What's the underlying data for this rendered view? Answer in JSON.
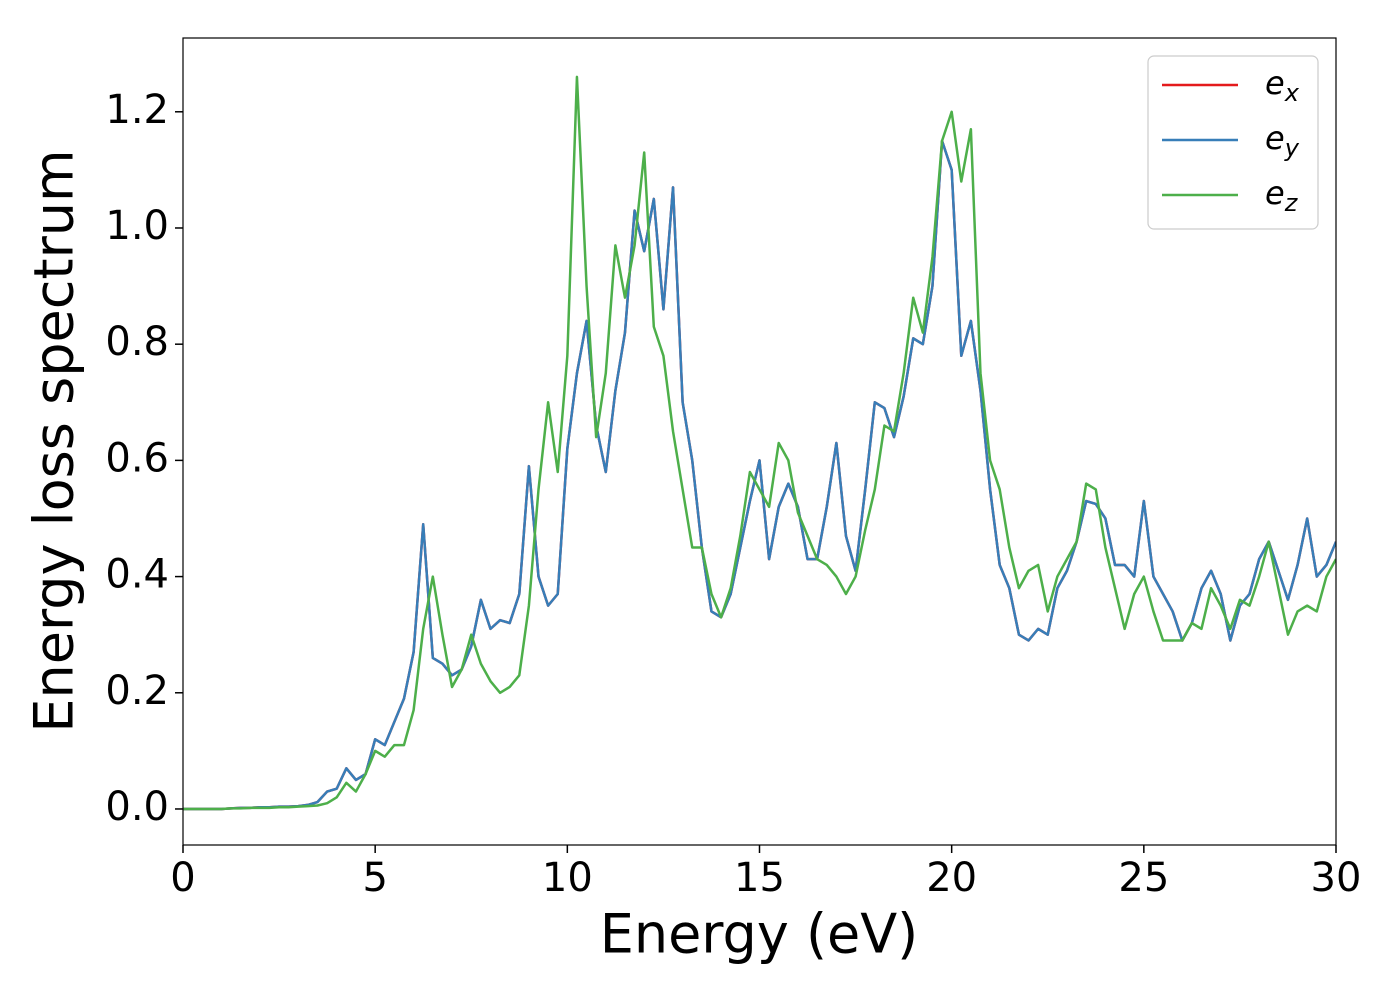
{
  "chart_data": {
    "type": "line",
    "xlabel": "Energy (eV)",
    "ylabel": "Energy loss spectrum",
    "x": [
      0,
      0.25,
      0.5,
      0.75,
      1,
      1.25,
      1.5,
      1.75,
      2,
      2.25,
      2.5,
      2.75,
      3,
      3.25,
      3.5,
      3.75,
      4,
      4.25,
      4.5,
      4.75,
      5,
      5.25,
      5.5,
      5.75,
      6,
      6.25,
      6.5,
      6.75,
      7,
      7.25,
      7.5,
      7.75,
      8,
      8.25,
      8.5,
      8.75,
      9,
      9.25,
      9.5,
      9.75,
      10,
      10.25,
      10.5,
      10.75,
      11,
      11.25,
      11.5,
      11.75,
      12,
      12.25,
      12.5,
      12.75,
      13,
      13.25,
      13.5,
      13.75,
      14,
      14.25,
      14.5,
      14.75,
      15,
      15.25,
      15.5,
      15.75,
      16,
      16.25,
      16.5,
      16.75,
      17,
      17.25,
      17.5,
      17.75,
      18,
      18.25,
      18.5,
      18.75,
      19,
      19.25,
      19.5,
      19.75,
      20,
      20.25,
      20.5,
      20.75,
      21,
      21.25,
      21.5,
      21.75,
      22,
      22.25,
      22.5,
      22.75,
      23,
      23.25,
      23.5,
      23.75,
      24,
      24.25,
      24.5,
      24.75,
      25,
      25.25,
      25.5,
      25.75,
      26,
      26.25,
      26.5,
      26.75,
      27,
      27.25,
      27.5,
      27.75,
      28,
      28.25,
      28.5,
      28.75,
      29,
      29.25,
      29.5,
      29.75,
      30
    ],
    "series": [
      {
        "name": "ex",
        "color": "#e41a1c",
        "values": [
          0,
          0,
          0,
          0,
          0,
          0.001,
          0.002,
          0.002,
          0.003,
          0.003,
          0.004,
          0.004,
          0.005,
          0.007,
          0.012,
          0.03,
          0.035,
          0.07,
          0.05,
          0.06,
          0.12,
          0.11,
          0.15,
          0.19,
          0.27,
          0.49,
          0.26,
          0.25,
          0.23,
          0.24,
          0.28,
          0.36,
          0.31,
          0.325,
          0.32,
          0.37,
          0.59,
          0.4,
          0.35,
          0.37,
          0.62,
          0.75,
          0.84,
          0.66,
          0.58,
          0.72,
          0.82,
          1.03,
          0.96,
          1.05,
          0.86,
          1.07,
          0.7,
          0.6,
          0.45,
          0.34,
          0.33,
          0.37,
          0.45,
          0.53,
          0.6,
          0.43,
          0.52,
          0.56,
          0.52,
          0.43,
          0.43,
          0.52,
          0.63,
          0.47,
          0.41,
          0.55,
          0.7,
          0.69,
          0.64,
          0.71,
          0.81,
          0.8,
          0.9,
          1.15,
          1.1,
          0.78,
          0.84,
          0.72,
          0.55,
          0.42,
          0.38,
          0.3,
          0.29,
          0.31,
          0.3,
          0.38,
          0.41,
          0.46,
          0.53,
          0.525,
          0.5,
          0.42,
          0.42,
          0.4,
          0.53,
          0.4,
          0.37,
          0.34,
          0.29,
          0.32,
          0.38,
          0.41,
          0.37,
          0.29,
          0.35,
          0.37,
          0.43,
          0.46,
          0.41,
          0.36,
          0.42,
          0.5,
          0.4,
          0.42,
          0.46
        ]
      },
      {
        "name": "ey",
        "color": "#377eb8",
        "values": [
          0,
          0,
          0,
          0,
          0,
          0.001,
          0.002,
          0.002,
          0.003,
          0.003,
          0.004,
          0.004,
          0.005,
          0.007,
          0.012,
          0.03,
          0.035,
          0.07,
          0.05,
          0.06,
          0.12,
          0.11,
          0.15,
          0.19,
          0.27,
          0.49,
          0.26,
          0.25,
          0.23,
          0.24,
          0.28,
          0.36,
          0.31,
          0.325,
          0.32,
          0.37,
          0.59,
          0.4,
          0.35,
          0.37,
          0.62,
          0.75,
          0.84,
          0.66,
          0.58,
          0.72,
          0.82,
          1.03,
          0.96,
          1.05,
          0.86,
          1.07,
          0.7,
          0.6,
          0.45,
          0.34,
          0.33,
          0.37,
          0.45,
          0.53,
          0.6,
          0.43,
          0.52,
          0.56,
          0.52,
          0.43,
          0.43,
          0.52,
          0.63,
          0.47,
          0.41,
          0.55,
          0.7,
          0.69,
          0.64,
          0.71,
          0.81,
          0.8,
          0.9,
          1.15,
          1.1,
          0.78,
          0.84,
          0.72,
          0.55,
          0.42,
          0.38,
          0.3,
          0.29,
          0.31,
          0.3,
          0.38,
          0.41,
          0.46,
          0.53,
          0.525,
          0.5,
          0.42,
          0.42,
          0.4,
          0.53,
          0.4,
          0.37,
          0.34,
          0.29,
          0.32,
          0.38,
          0.41,
          0.37,
          0.29,
          0.35,
          0.37,
          0.43,
          0.46,
          0.41,
          0.36,
          0.42,
          0.5,
          0.4,
          0.42,
          0.46
        ]
      },
      {
        "name": "ez",
        "color": "#4daf4a",
        "values": [
          0,
          0,
          0,
          0,
          0,
          0.001,
          0.001,
          0.002,
          0.002,
          0.002,
          0.003,
          0.003,
          0.004,
          0.005,
          0.006,
          0.01,
          0.02,
          0.045,
          0.03,
          0.06,
          0.1,
          0.09,
          0.11,
          0.11,
          0.17,
          0.31,
          0.4,
          0.3,
          0.21,
          0.24,
          0.3,
          0.25,
          0.22,
          0.2,
          0.21,
          0.23,
          0.35,
          0.55,
          0.7,
          0.58,
          0.78,
          1.26,
          0.9,
          0.64,
          0.75,
          0.97,
          0.88,
          0.97,
          1.13,
          0.83,
          0.78,
          0.65,
          0.55,
          0.45,
          0.45,
          0.37,
          0.33,
          0.38,
          0.47,
          0.58,
          0.55,
          0.52,
          0.63,
          0.6,
          0.51,
          0.47,
          0.43,
          0.42,
          0.4,
          0.37,
          0.4,
          0.48,
          0.55,
          0.66,
          0.65,
          0.75,
          0.88,
          0.82,
          0.95,
          1.15,
          1.2,
          1.08,
          1.17,
          0.75,
          0.6,
          0.55,
          0.45,
          0.38,
          0.41,
          0.42,
          0.34,
          0.4,
          0.43,
          0.46,
          0.56,
          0.55,
          0.45,
          0.38,
          0.31,
          0.37,
          0.4,
          0.34,
          0.29,
          0.29,
          0.29,
          0.32,
          0.31,
          0.38,
          0.35,
          0.31,
          0.36,
          0.35,
          0.4,
          0.46,
          0.38,
          0.3,
          0.34,
          0.35,
          0.34,
          0.4,
          0.43
        ]
      }
    ],
    "xlim": [
      0,
      30
    ],
    "xticks": [
      0,
      5,
      10,
      15,
      20,
      25,
      30
    ],
    "ylim": [
      -0.062,
      1.327
    ],
    "yticks": [
      {
        "value": 0,
        "label": "0.0"
      },
      {
        "value": 0.2,
        "label": "0.2"
      },
      {
        "value": 0.4,
        "label": "0.4"
      },
      {
        "value": 0.6,
        "label": "0.6"
      },
      {
        "value": 0.8,
        "label": "0.8"
      },
      {
        "value": 1,
        "label": "1.0"
      },
      {
        "value": 1.2,
        "label": "1.2"
      }
    ],
    "legend": "upper right",
    "grid": false
  }
}
